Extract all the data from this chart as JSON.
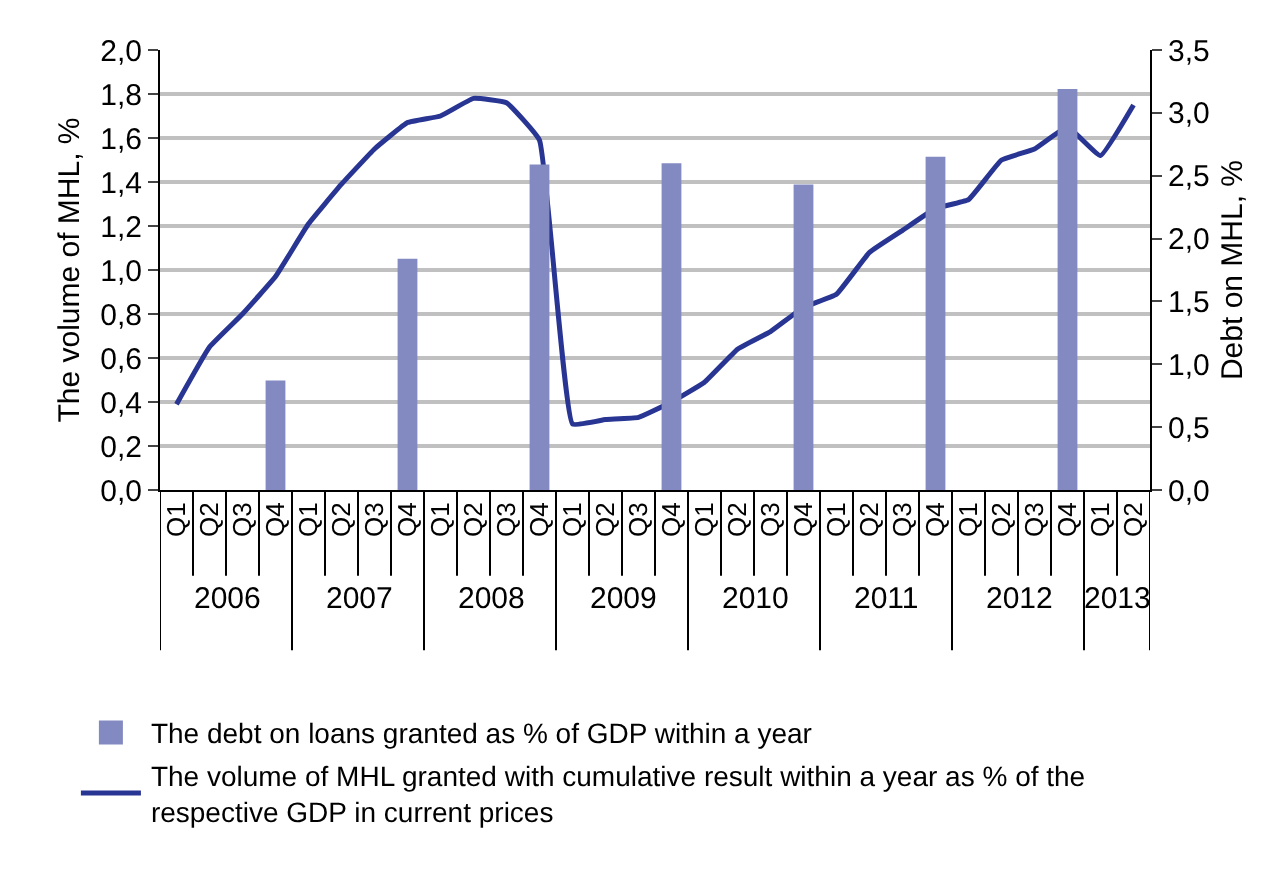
{
  "chart_data": {
    "type": "bar",
    "ylabel": "The volume of MHL, %",
    "y2label": "Debt on MHL, %",
    "categories": [
      "Q1",
      "Q2",
      "Q3",
      "Q4",
      "Q1",
      "Q2",
      "Q3",
      "Q4",
      "Q1",
      "Q2",
      "Q3",
      "Q4",
      "Q1",
      "Q2",
      "Q3",
      "Q4",
      "Q1",
      "Q2",
      "Q3",
      "Q4",
      "Q1",
      "Q2",
      "Q3",
      "Q4",
      "Q1",
      "Q2",
      "Q3",
      "Q4",
      "Q1",
      "Q2"
    ],
    "annotations": [
      "2006",
      "2007",
      "2008",
      "2009",
      "2010",
      "2011",
      "2012",
      "2013"
    ],
    "series": [
      {
        "name": "The debt on loans granted as % of GDP within a year",
        "axis": "y2",
        "color": "#8389c1",
        "values": [
          null,
          null,
          null,
          0.87,
          null,
          null,
          null,
          1.84,
          null,
          null,
          null,
          2.59,
          null,
          null,
          null,
          2.6,
          null,
          null,
          null,
          2.43,
          null,
          null,
          null,
          2.65,
          null,
          null,
          null,
          3.19,
          null,
          null
        ]
      },
      {
        "name": "The volume of MHL granted with cumulative result within a year as % of the respective GDP in current prices",
        "type": "line",
        "color": "#283593",
        "values": [
          0.39,
          0.65,
          0.8,
          0.97,
          1.21,
          1.39,
          1.55,
          1.67,
          1.7,
          1.78,
          1.76,
          1.59,
          0.3,
          0.32,
          0.33,
          0.4,
          0.49,
          0.64,
          0.72,
          0.83,
          0.89,
          1.08,
          1.18,
          1.28,
          1.32,
          1.5,
          1.55,
          1.65,
          1.52,
          1.75
        ]
      }
    ],
    "ylim": [
      0,
      2
    ],
    "yticks": [
      {
        "value": 0,
        "label": "0,0"
      },
      {
        "value": 0.2,
        "label": "0,2"
      },
      {
        "value": 0.4,
        "label": "0,4"
      },
      {
        "value": 0.6,
        "label": "0,6"
      },
      {
        "value": 0.8,
        "label": "0,8"
      },
      {
        "value": 1,
        "label": "1,0"
      },
      {
        "value": 1.2,
        "label": "1,2"
      },
      {
        "value": 1.4,
        "label": "1,4"
      },
      {
        "value": 1.6,
        "label": "1,6"
      },
      {
        "value": 1.8,
        "label": "1,8"
      },
      {
        "value": 2,
        "label": "2,0"
      }
    ],
    "y2lim": [
      0,
      3.5
    ],
    "y2ticks": [
      {
        "value": 0,
        "label": "0,0"
      },
      {
        "value": 0.5,
        "label": "0,5"
      },
      {
        "value": 1,
        "label": "1,0"
      },
      {
        "value": 1.5,
        "label": "1,5"
      },
      {
        "value": 2,
        "label": "2,0"
      },
      {
        "value": 2.5,
        "label": "2,5"
      },
      {
        "value": 3,
        "label": "3,0"
      },
      {
        "value": 3.5,
        "label": "3,5"
      }
    ],
    "grid": "y",
    "legend": "bottom",
    "marker": "none",
    "line_style": "solid"
  }
}
